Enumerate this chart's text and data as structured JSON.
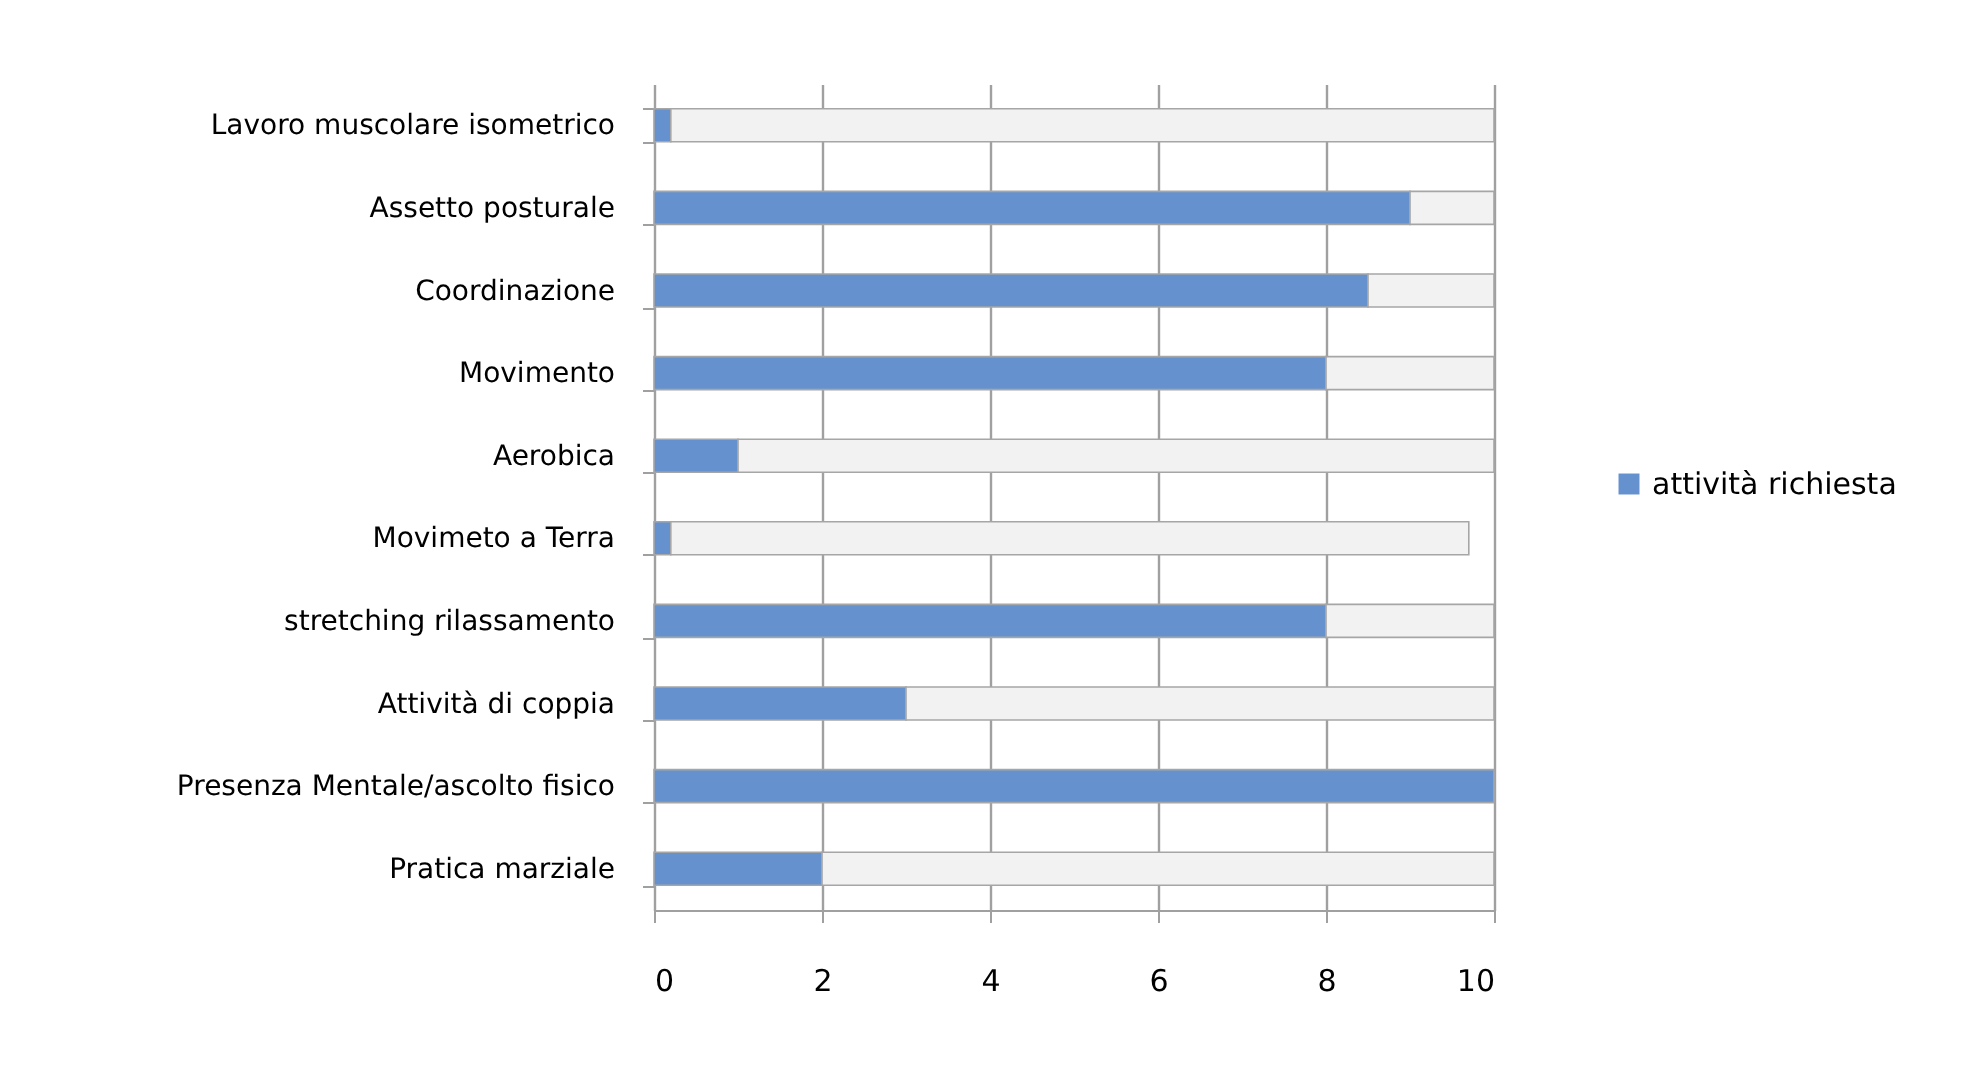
{
  "chart_data": {
    "type": "bar",
    "orientation": "horizontal",
    "stacked": true,
    "categories": [
      "Lavoro muscolare isometrico",
      "Assetto posturale",
      "Coordinazione",
      "Movimento",
      "Aerobica",
      "Movimeto a Terra",
      "stretching rilassamento",
      "Attività di coppia",
      "Presenza Mentale/ascolto fisico",
      "Pratica marziale"
    ],
    "series": [
      {
        "name": "attività richiesta",
        "color": "#6592cf",
        "values": [
          0.2,
          9,
          8.5,
          8,
          1,
          0.2,
          8,
          3,
          10,
          2
        ]
      },
      {
        "color": "#f2f2f2",
        "values": [
          9.8,
          1,
          1.5,
          2,
          9,
          9.5,
          2,
          7,
          0,
          8
        ]
      }
    ],
    "xlim": [
      0,
      10
    ],
    "xticks": [
      0,
      2,
      4,
      6,
      8,
      10
    ],
    "grid": "x",
    "legend": "right"
  }
}
